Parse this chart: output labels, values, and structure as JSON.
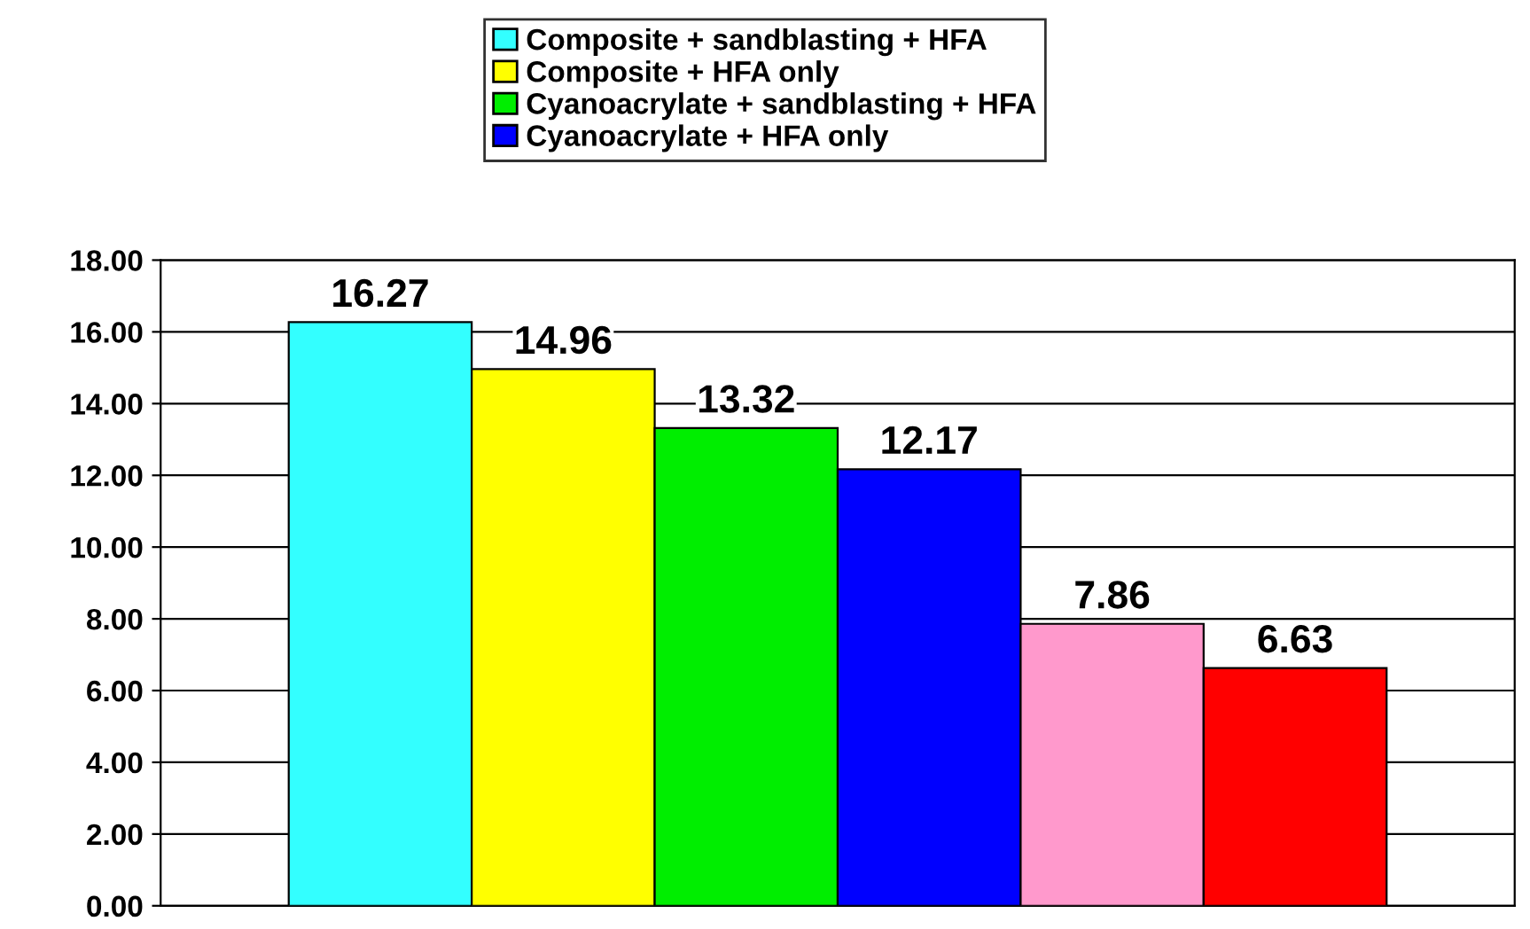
{
  "chart_data": {
    "type": "bar",
    "categories": [
      null,
      null,
      null,
      null,
      null,
      null
    ],
    "series": [
      {
        "name": "Composite + sandblasting + HFA",
        "color": "#33ffff",
        "values": [
          16.27,
          null,
          null,
          null,
          null,
          null
        ]
      },
      {
        "name": "Composite + HFA only",
        "color": "#ffff00",
        "values": [
          null,
          14.96,
          null,
          null,
          null,
          null
        ]
      },
      {
        "name": "Cyanoacrylate + sandblasting + HFA",
        "color": "#00ee00",
        "values": [
          null,
          null,
          13.32,
          null,
          null,
          null
        ]
      },
      {
        "name": "Cyanoacrylate + HFA only",
        "color": "#0000ff",
        "values": [
          null,
          null,
          null,
          12.17,
          null,
          null
        ]
      },
      {
        "colors": [
          null,
          null,
          null,
          null,
          "#ff99cc",
          "#ff0000"
        ],
        "values": [
          null,
          null,
          null,
          null,
          7.86,
          6.63
        ]
      }
    ],
    "ylim": [
      0,
      18
    ],
    "yticks": [
      {
        "value": 0,
        "label": "0.00"
      },
      {
        "value": 2,
        "label": "2.00"
      },
      {
        "value": 4,
        "label": "4.00"
      },
      {
        "value": 6,
        "label": "6.00"
      },
      {
        "value": 8,
        "label": "8.00"
      },
      {
        "value": 10,
        "label": "10.00"
      },
      {
        "value": 12,
        "label": "12.00"
      },
      {
        "value": 14,
        "label": "14.00"
      },
      {
        "value": 16,
        "label": "16.00"
      },
      {
        "value": 18,
        "label": "18.00"
      }
    ],
    "grid": "y",
    "legend": "top",
    "data_labels": true
  }
}
